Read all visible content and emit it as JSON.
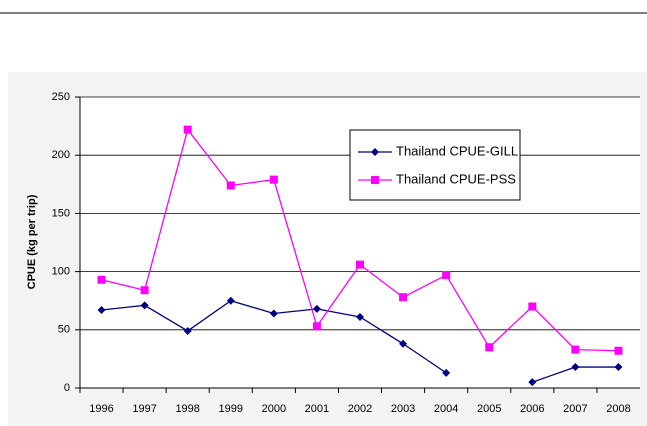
{
  "chart_data": {
    "type": "line",
    "y_label": "CPUE (kg per trip)",
    "categories": [
      "1996",
      "1997",
      "1998",
      "1999",
      "2000",
      "2001",
      "2002",
      "2003",
      "2004",
      "2005",
      "2006",
      "2007",
      "2008"
    ],
    "series": [
      {
        "name": "Thailand CPUE-GILL",
        "color": "#000080",
        "marker": "diamond",
        "values": [
          67,
          71,
          49,
          75,
          64,
          68,
          61,
          38,
          13,
          null,
          5,
          18,
          18
        ]
      },
      {
        "name": "Thailand CPUE-PSS",
        "color": "#ff00ff",
        "marker": "square",
        "values": [
          93,
          84,
          222,
          174,
          179,
          53,
          106,
          78,
          97,
          35,
          70,
          33,
          32
        ]
      }
    ],
    "ylim": [
      0,
      250
    ],
    "yticks": [
      0,
      50,
      100,
      150,
      200,
      250
    ],
    "grid": true,
    "legend": "upper-right"
  }
}
